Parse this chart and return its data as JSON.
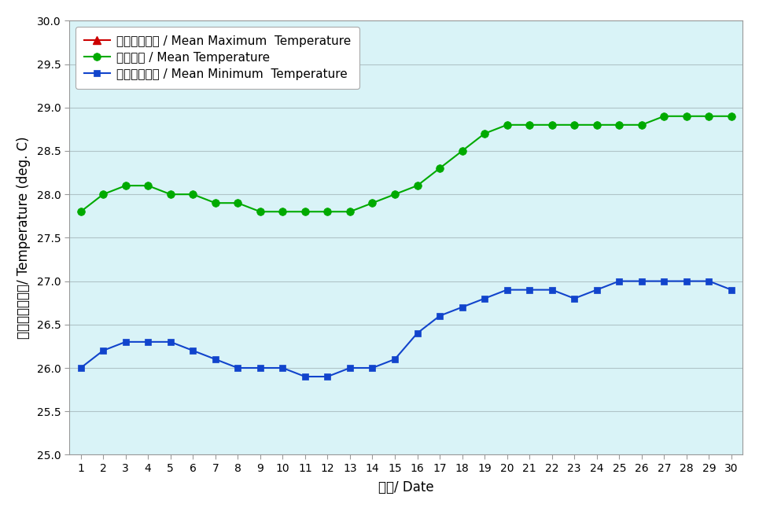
{
  "days": [
    1,
    2,
    3,
    4,
    5,
    6,
    7,
    8,
    9,
    10,
    11,
    12,
    13,
    14,
    15,
    16,
    17,
    18,
    19,
    20,
    21,
    22,
    23,
    24,
    25,
    26,
    27,
    28,
    29,
    30
  ],
  "mean_temp": [
    27.8,
    28.0,
    28.1,
    28.1,
    28.0,
    28.0,
    27.9,
    27.9,
    27.8,
    27.8,
    27.8,
    27.8,
    27.8,
    27.9,
    28.0,
    28.1,
    28.3,
    28.5,
    28.7,
    28.8,
    28.8,
    28.8,
    28.8,
    28.8,
    28.8,
    28.8,
    28.9,
    28.9,
    28.9,
    28.9
  ],
  "mean_min": [
    26.0,
    26.2,
    26.3,
    26.3,
    26.3,
    26.2,
    26.1,
    26.0,
    26.0,
    26.0,
    25.9,
    25.9,
    26.0,
    26.0,
    26.1,
    26.4,
    26.6,
    26.7,
    26.8,
    26.9,
    26.9,
    26.9,
    26.8,
    26.9,
    27.0,
    27.0,
    27.0,
    27.0,
    27.0,
    26.9
  ],
  "ylim": [
    25.0,
    30.0
  ],
  "ytick_step": 0.5,
  "background_color": "#d9f3f7",
  "outer_bg_color": "#ffffff",
  "legend_bg_color": "#ffffff",
  "mean_max_color": "#cc0000",
  "mean_temp_color": "#00aa00",
  "mean_min_color": "#1144cc",
  "grid_color": "#b0c4c8",
  "xlabel": "日期/ Date",
  "ylabel": "溫度（攝氏度）/ Temperature (deg. C)",
  "legend_label_max": "平均最高氣溫 / Mean Maximum  Temperature",
  "legend_label_mean": "平均氣溫 / Mean Temperature",
  "legend_label_min": "平均最低氣溫 / Mean Minimum  Temperature",
  "axis_label_fontsize": 12,
  "tick_fontsize": 10,
  "legend_fontsize": 11,
  "line_width": 1.5,
  "marker_size_circle": 7,
  "marker_size_square": 6,
  "marker_size_triangle": 7
}
